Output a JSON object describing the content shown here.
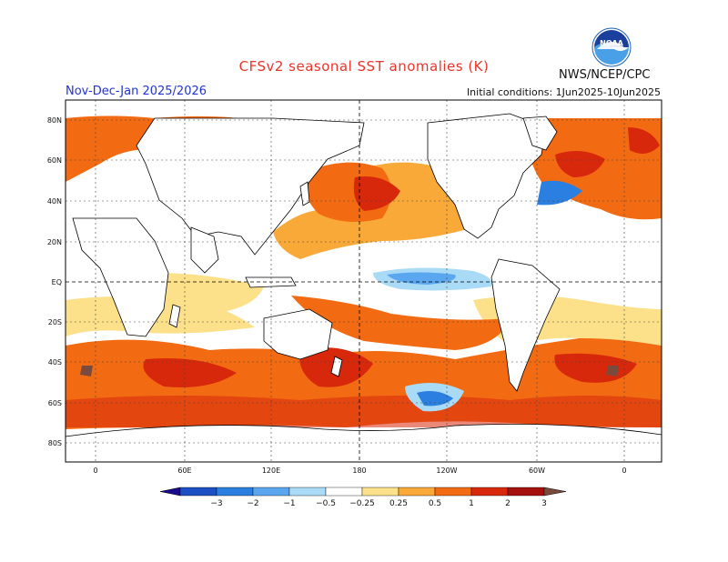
{
  "header": {
    "title": "CFSv2 seasonal SST anomalies (K)",
    "period": "Nov-Dec-Jan 2025/2026",
    "initial_conditions": "Initial conditions: 1Jun2025-10Jun2025",
    "organization": "NWS/NCEP/CPC",
    "logo_text": "NOAA"
  },
  "map": {
    "lat_labels": [
      "80N",
      "60N",
      "40N",
      "20N",
      "EQ",
      "20S",
      "40S",
      "60S",
      "80S"
    ],
    "lon_labels": [
      "0",
      "60E",
      "120E",
      "180",
      "120W",
      "60W",
      "0"
    ]
  },
  "colorbar": {
    "ticks": [
      "−3",
      "−2",
      "−1",
      "−0.5",
      "−0.25",
      "0.25",
      "0.5",
      "1",
      "2",
      "3"
    ],
    "colors": [
      "#1a0a8c",
      "#1c4fc4",
      "#2a7fe0",
      "#5aa7f0",
      "#a9dbf7",
      "#ffffff",
      "#fde08a",
      "#f9a938",
      "#f26a12",
      "#d8280c",
      "#a5100c",
      "#7a4b3c"
    ]
  }
}
